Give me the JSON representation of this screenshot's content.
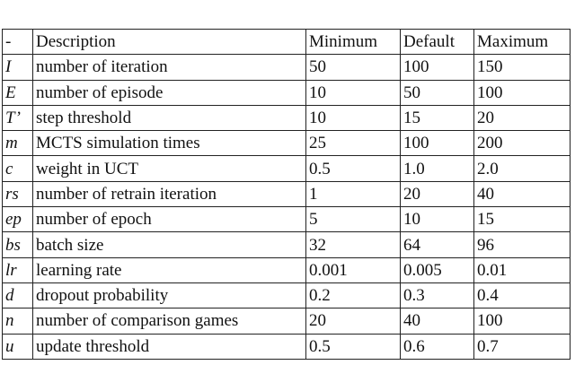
{
  "table": {
    "header": [
      "-",
      "Description",
      "Minimum",
      "Default",
      "Maximum"
    ],
    "rows": [
      [
        "I",
        "number of iteration",
        "50",
        "100",
        "150"
      ],
      [
        "E",
        "number of episode",
        "10",
        "50",
        "100"
      ],
      [
        "T’",
        "step threshold",
        "10",
        "15",
        "20"
      ],
      [
        "m",
        "MCTS simulation times",
        "25",
        "100",
        "200"
      ],
      [
        "c",
        "weight in UCT",
        "0.5",
        "1.0",
        "2.0"
      ],
      [
        "rs",
        "number of retrain iteration",
        "1",
        "20",
        "40"
      ],
      [
        "ep",
        "number of epoch",
        "5",
        "10",
        "15"
      ],
      [
        "bs",
        "batch size",
        "32",
        "64",
        "96"
      ],
      [
        "lr",
        "learning rate",
        "0.001",
        "0.005",
        "0.01"
      ],
      [
        "d",
        "dropout probability",
        "0.2",
        "0.3",
        "0.4"
      ],
      [
        "n",
        "number of comparison games",
        "20",
        "40",
        "100"
      ],
      [
        "u",
        "update threshold",
        "0.5",
        "0.6",
        "0.7"
      ]
    ]
  }
}
